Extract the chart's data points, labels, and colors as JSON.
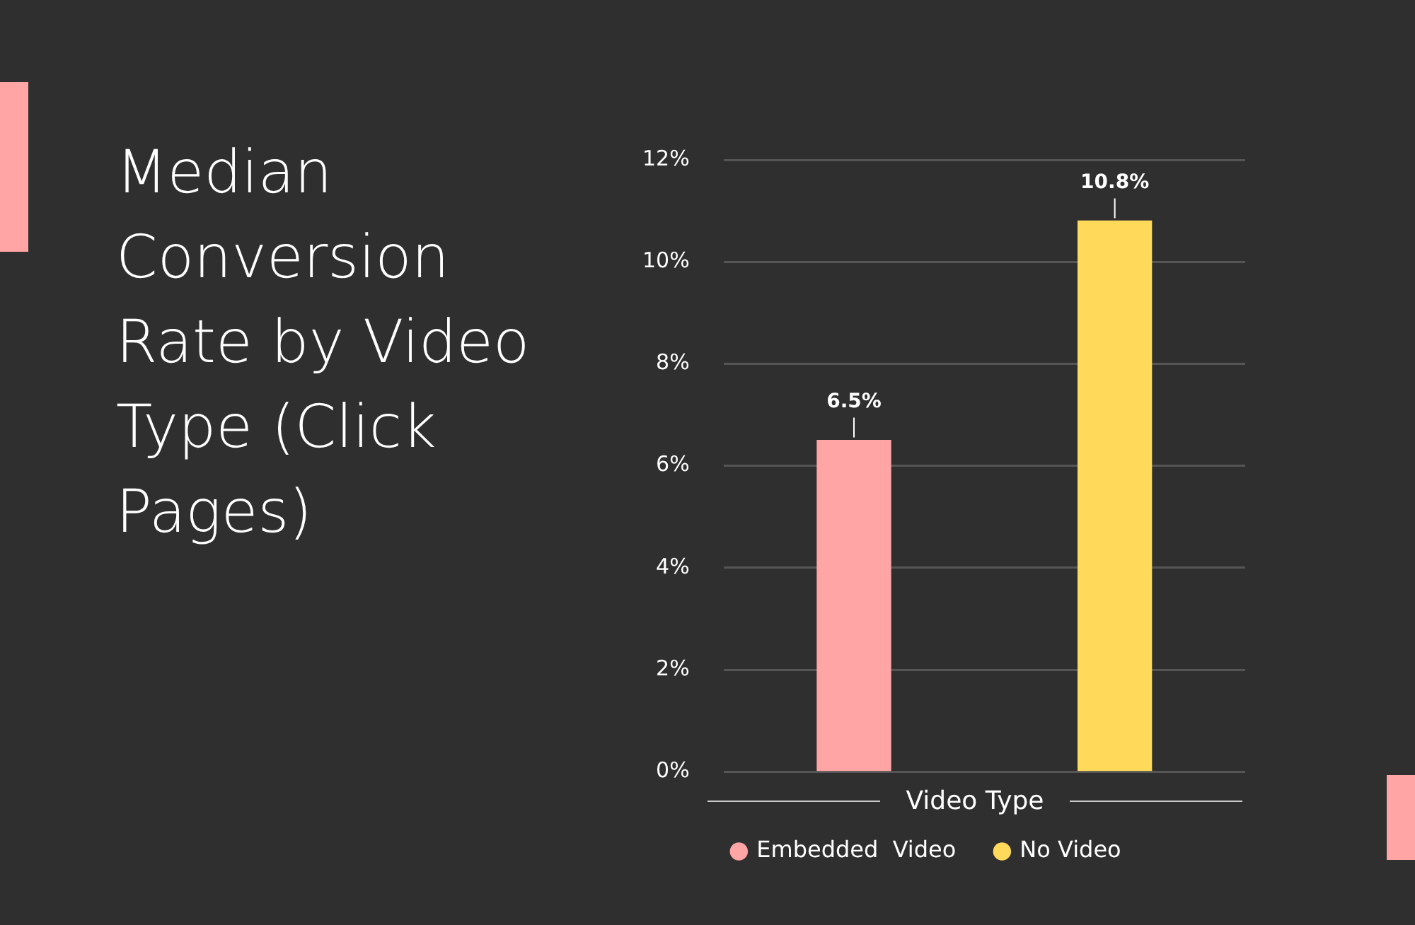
{
  "chart_data": {
    "type": "bar",
    "title": "Median Conversion Rate by Video Type (Click Pages)",
    "xlabel": "Video Type",
    "categories": [
      null,
      null
    ],
    "series": [
      {
        "name": "Embedded  Video",
        "color": "#ffa5a5",
        "values": [
          6.5,
          null
        ],
        "value_labels": [
          "6.5%",
          null
        ]
      },
      {
        "name": "No Video",
        "color": "#ffd95a",
        "values": [
          null,
          10.8
        ],
        "value_labels": [
          null,
          "10.8%"
        ]
      }
    ],
    "ylim": [
      0,
      12
    ],
    "yticks": [
      {
        "value": 0,
        "label": "0%"
      },
      {
        "value": 2,
        "label": "2%"
      },
      {
        "value": 4,
        "label": "4%"
      },
      {
        "value": 6,
        "label": "6%"
      },
      {
        "value": 8,
        "label": "8%"
      },
      {
        "value": 10,
        "label": "10%"
      },
      {
        "value": 12,
        "label": "12%"
      }
    ],
    "grid": "y",
    "legend": "bottom"
  }
}
